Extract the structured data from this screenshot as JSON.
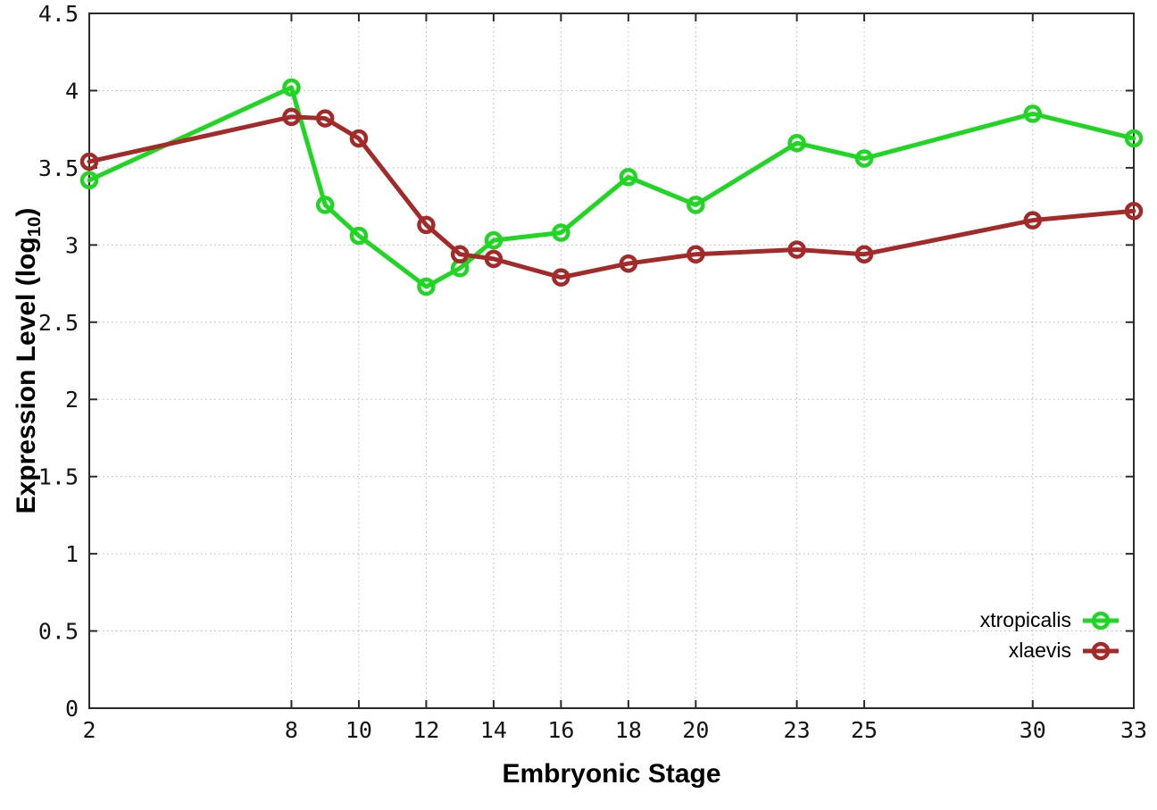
{
  "figure": {
    "background": "#ffffff",
    "border_color": "#2b2b2b",
    "grid_color": "#b8b8b8",
    "tick_label_color": "#141414"
  },
  "chart_data": {
    "type": "line",
    "title": "",
    "xlabel": "Embryonic Stage",
    "ylabel": "Expression Level (log10)",
    "ylabel_prefix": "Expression Level (log",
    "ylabel_subscript": "10",
    "ylabel_suffix": ")",
    "x": [
      2,
      8,
      9,
      10,
      12,
      13,
      14,
      16,
      18,
      20,
      23,
      25,
      30,
      33
    ],
    "xlim": [
      2,
      33
    ],
    "ylim": [
      0,
      4.5
    ],
    "xticks": [
      2,
      8,
      10,
      12,
      14,
      16,
      18,
      20,
      23,
      25,
      30,
      33
    ],
    "xtick_labels": [
      "2",
      "8",
      "10",
      "12",
      "14",
      "16",
      "18",
      "20",
      "23",
      "25",
      "30",
      "33"
    ],
    "yticks": [
      0,
      0.5,
      1,
      1.5,
      2,
      2.5,
      3,
      3.5,
      4,
      4.5
    ],
    "ytick_labels": [
      "0",
      "0.5",
      "1",
      "1.5",
      "2",
      "2.5",
      "3",
      "3.5",
      "4",
      "4.5"
    ],
    "grid": true,
    "legend_position": "bottom-right",
    "marker": "open-circle",
    "series": [
      {
        "name": "xtropicalis",
        "color": "#1fd723",
        "values": [
          3.42,
          4.02,
          3.26,
          3.06,
          2.73,
          2.85,
          3.03,
          3.08,
          3.44,
          3.26,
          3.66,
          3.56,
          3.85,
          3.69
        ]
      },
      {
        "name": "xlaevis",
        "color": "#a42a2a",
        "values": [
          3.54,
          3.83,
          3.82,
          3.69,
          3.13,
          2.94,
          2.91,
          2.79,
          2.88,
          2.94,
          2.97,
          2.94,
          3.16,
          3.22
        ]
      }
    ]
  }
}
